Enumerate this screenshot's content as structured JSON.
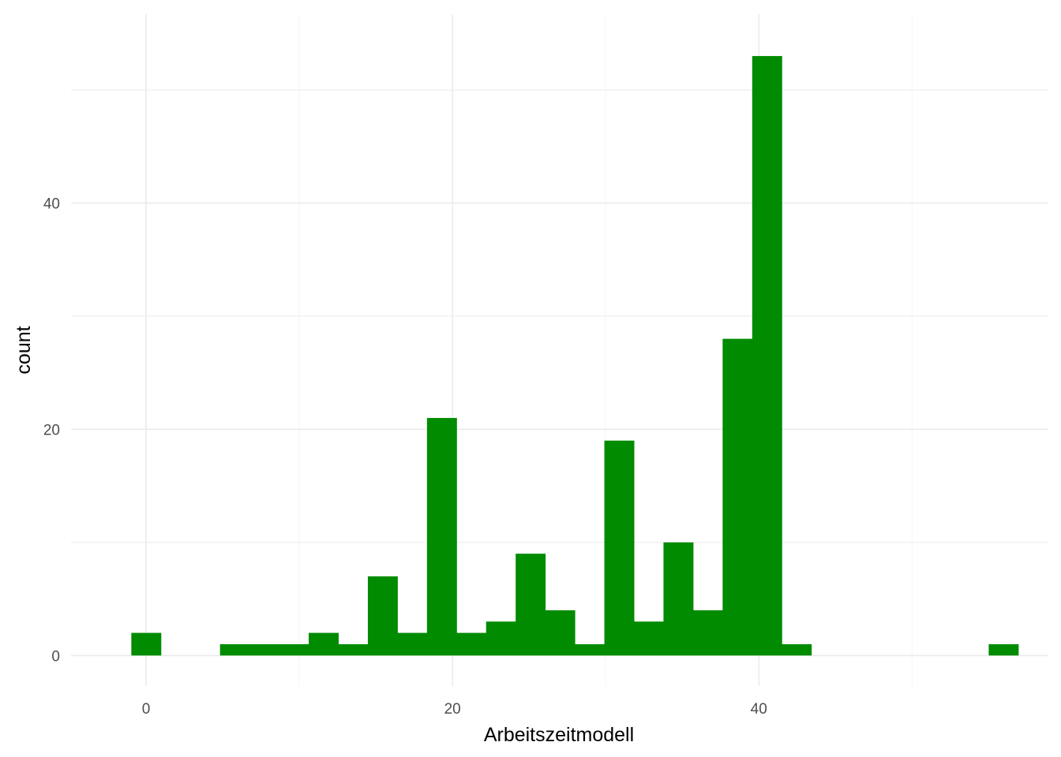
{
  "chart_data": {
    "type": "bar",
    "subtype": "histogram",
    "xlabel": "Arbeitszeitmodell",
    "ylabel": "count",
    "xlim": [
      -4.9,
      58.9
    ],
    "ylim": [
      -2.7,
      56.7
    ],
    "x_ticks": [
      0,
      20,
      40
    ],
    "x_minor_ticks": [
      10,
      30,
      50
    ],
    "y_ticks": [
      0,
      20,
      40
    ],
    "y_minor_ticks": [
      10,
      30,
      50
    ],
    "bin_width": 1.93,
    "bins": [
      {
        "x": 0.0,
        "count": 2
      },
      {
        "x": 1.93,
        "count": 0
      },
      {
        "x": 3.86,
        "count": 0
      },
      {
        "x": 5.79,
        "count": 1
      },
      {
        "x": 7.72,
        "count": 1
      },
      {
        "x": 9.65,
        "count": 1
      },
      {
        "x": 11.58,
        "count": 2
      },
      {
        "x": 13.51,
        "count": 1
      },
      {
        "x": 15.44,
        "count": 7
      },
      {
        "x": 17.37,
        "count": 2
      },
      {
        "x": 19.3,
        "count": 21
      },
      {
        "x": 21.23,
        "count": 2
      },
      {
        "x": 23.16,
        "count": 3
      },
      {
        "x": 25.09,
        "count": 9
      },
      {
        "x": 27.02,
        "count": 4
      },
      {
        "x": 28.95,
        "count": 1
      },
      {
        "x": 30.88,
        "count": 19
      },
      {
        "x": 32.81,
        "count": 3
      },
      {
        "x": 34.74,
        "count": 10
      },
      {
        "x": 36.67,
        "count": 4
      },
      {
        "x": 38.6,
        "count": 28
      },
      {
        "x": 40.53,
        "count": 53
      },
      {
        "x": 42.46,
        "count": 1
      },
      {
        "x": 44.39,
        "count": 0
      },
      {
        "x": 46.32,
        "count": 0
      },
      {
        "x": 48.25,
        "count": 0
      },
      {
        "x": 50.18,
        "count": 0
      },
      {
        "x": 52.11,
        "count": 0
      },
      {
        "x": 54.04,
        "count": 0
      },
      {
        "x": 55.97,
        "count": 1
      }
    ],
    "grid": true,
    "legend": "none",
    "bar_color": "#008B00",
    "grid_major_color": "#EBEBEB",
    "grid_minor_color": "#F5F5F5"
  }
}
